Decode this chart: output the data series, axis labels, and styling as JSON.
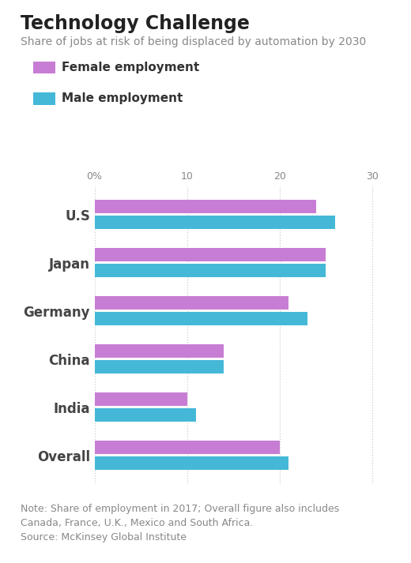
{
  "title": "Technology Challenge",
  "subtitle": "Share of jobs at risk of being displaced by automation by 2030",
  "categories": [
    "U.S",
    "Japan",
    "Germany",
    "China",
    "India",
    "Overall"
  ],
  "female_values": [
    24,
    25,
    21,
    14,
    10,
    20
  ],
  "male_values": [
    26,
    25,
    23,
    14,
    11,
    21
  ],
  "female_color": "#C87DD4",
  "male_color": "#45B8D8",
  "xlim": [
    0,
    32
  ],
  "xticks": [
    0,
    10,
    20,
    30
  ],
  "xticklabels": [
    "0%",
    "10",
    "20",
    "30"
  ],
  "note_line1": "Note: Share of employment in 2017; Overall figure also includes",
  "note_line2": "Canada, France, U.K., Mexico and South Africa.",
  "note_line3": "Source: McKinsey Global Institute",
  "background_color": "#ffffff",
  "title_fontsize": 17,
  "subtitle_fontsize": 10,
  "legend_fontsize": 11,
  "category_fontsize": 12,
  "note_fontsize": 9,
  "bar_height": 0.28,
  "bar_gap": 0.05
}
